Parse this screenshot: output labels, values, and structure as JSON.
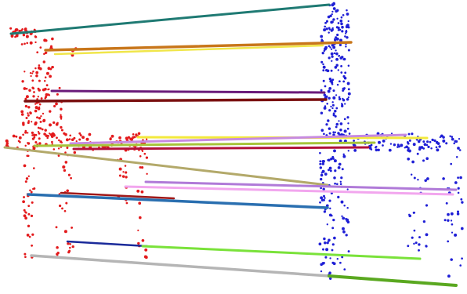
{
  "figure": {
    "description_visible_text": "",
    "background_color": "#ffffff",
    "source_points_color": "#e31a1c",
    "target_points_color": "#1f1fd6"
  },
  "correspondences": [
    {
      "name": "teal-line",
      "color": "#1f7a73"
    },
    {
      "name": "orange-line",
      "color": "#c8761a"
    },
    {
      "name": "yellow-line",
      "color": "#f0e64a"
    },
    {
      "name": "purple-line",
      "color": "#6a1b7a"
    },
    {
      "name": "maroon-line",
      "color": "#7a1010"
    },
    {
      "name": "yellow-line-2",
      "color": "#f3e93c"
    },
    {
      "name": "lavender-line",
      "color": "#c78ae0"
    },
    {
      "name": "olive-green-line",
      "color": "#a6c43a"
    },
    {
      "name": "crimson-line",
      "color": "#b0123b"
    },
    {
      "name": "khaki-line",
      "color": "#b3a96a"
    },
    {
      "name": "violet-line",
      "color": "#b07ad8"
    },
    {
      "name": "pink-line",
      "color": "#f2a6ee"
    },
    {
      "name": "steel-blue-line",
      "color": "#2a6fb0"
    },
    {
      "name": "dark-red-line",
      "color": "#a01818"
    },
    {
      "name": "navy-line",
      "color": "#1a2a9a"
    },
    {
      "name": "lime-line",
      "color": "#7ae23a"
    },
    {
      "name": "gray-line",
      "color": "#b5b5b5"
    },
    {
      "name": "green-line",
      "color": "#5aa820"
    }
  ]
}
